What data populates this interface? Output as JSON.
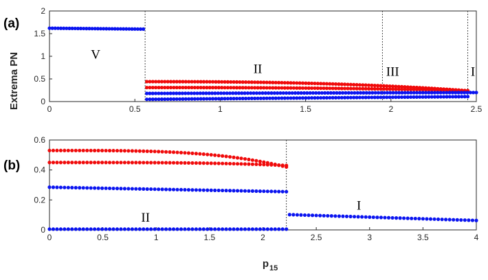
{
  "figure": {
    "ylabel": "Extrema PN",
    "xlabel": "p",
    "xlabel_sub": "15"
  },
  "colors": {
    "blue": "#0a14f0",
    "red": "#f00a0a",
    "axis": "#262626",
    "boundary": "#333333"
  },
  "chart_data": [
    {
      "type": "scatter",
      "panel_label": "(a)",
      "xlim": [
        0,
        2.5
      ],
      "ylim": [
        0,
        2
      ],
      "xticks": [
        "0",
        "0.5",
        "1",
        "1.5",
        "2",
        "2.5"
      ],
      "yticks": [
        "0",
        "0.5",
        "1",
        "1.5",
        "2"
      ],
      "xtick_values": [
        0,
        0.5,
        1,
        1.5,
        2,
        2.5
      ],
      "ytick_values": [
        0,
        0.5,
        1,
        1.5,
        2
      ],
      "boundaries": [
        0.56,
        1.95,
        2.45
      ],
      "regions": [
        {
          "label": "V",
          "x": 0.27,
          "y": 0.95
        },
        {
          "label": "II",
          "x": 1.22,
          "y": 0.63
        },
        {
          "label": "III",
          "x": 2.01,
          "y": 0.57
        },
        {
          "label": "I",
          "x": 2.48,
          "y": 0.57
        }
      ],
      "series": [
        {
          "name": "max region V",
          "color": "blue",
          "x_start": 0,
          "x_end": 0.55,
          "y_start": 1.62,
          "y_end": 1.6,
          "count": 34
        },
        {
          "name": "max upper",
          "color": "red",
          "x_start": 0.57,
          "x_end": 2.45,
          "y_start": 0.44,
          "y_end": 0.24,
          "curve": 2.5,
          "count": 108
        },
        {
          "name": "max lower",
          "color": "red",
          "x_start": 0.57,
          "x_end": 2.45,
          "y_start": 0.31,
          "y_end": 0.24,
          "curve": 2.5,
          "count": 108
        },
        {
          "name": "min upper",
          "color": "blue",
          "x_start": 0.57,
          "x_end": 2.5,
          "y_start": 0.18,
          "y_end": 0.2,
          "count": 112
        },
        {
          "name": "min lower",
          "color": "blue",
          "x_start": 0.57,
          "x_end": 2.45,
          "y_start": 0.05,
          "y_end": 0.11,
          "count": 108
        }
      ]
    },
    {
      "type": "scatter",
      "panel_label": "(b)",
      "xlim": [
        0,
        4
      ],
      "ylim": [
        0,
        0.6
      ],
      "xticks": [
        "0",
        "0.5",
        "1",
        "1.5",
        "2",
        "2.5",
        "3",
        "3.5",
        "4"
      ],
      "yticks": [
        "0",
        "0.2",
        "0.4",
        "0.6"
      ],
      "xtick_values": [
        0,
        0.5,
        1,
        1.5,
        2,
        2.5,
        3,
        3.5,
        4
      ],
      "ytick_values": [
        0,
        0.2,
        0.4,
        0.6
      ],
      "boundaries": [
        2.22
      ],
      "regions": [
        {
          "label": "II",
          "x": 0.9,
          "y": 0.055
        },
        {
          "label": "I",
          "x": 2.9,
          "y": 0.135
        }
      ],
      "series": [
        {
          "name": "max upper",
          "color": "red",
          "x_start": 0,
          "x_end": 2.22,
          "y_start": 0.53,
          "y_end": 0.42,
          "curve": 3.5,
          "count": 64
        },
        {
          "name": "max lower",
          "color": "red",
          "x_start": 0,
          "x_end": 2.22,
          "y_start": 0.45,
          "y_end": 0.43,
          "curve": 3.5,
          "count": 64
        },
        {
          "name": "min upper",
          "color": "blue",
          "x_start": 0,
          "x_end": 2.22,
          "y_start": 0.285,
          "y_end": 0.255,
          "count": 64
        },
        {
          "name": "min zero",
          "color": "blue",
          "x_start": 0,
          "x_end": 2.22,
          "y_start": 0.005,
          "y_end": 0.005,
          "count": 64
        },
        {
          "name": "region I",
          "color": "blue",
          "x_start": 2.25,
          "x_end": 4,
          "y_start": 0.102,
          "y_end": 0.063,
          "count": 50
        }
      ]
    }
  ]
}
